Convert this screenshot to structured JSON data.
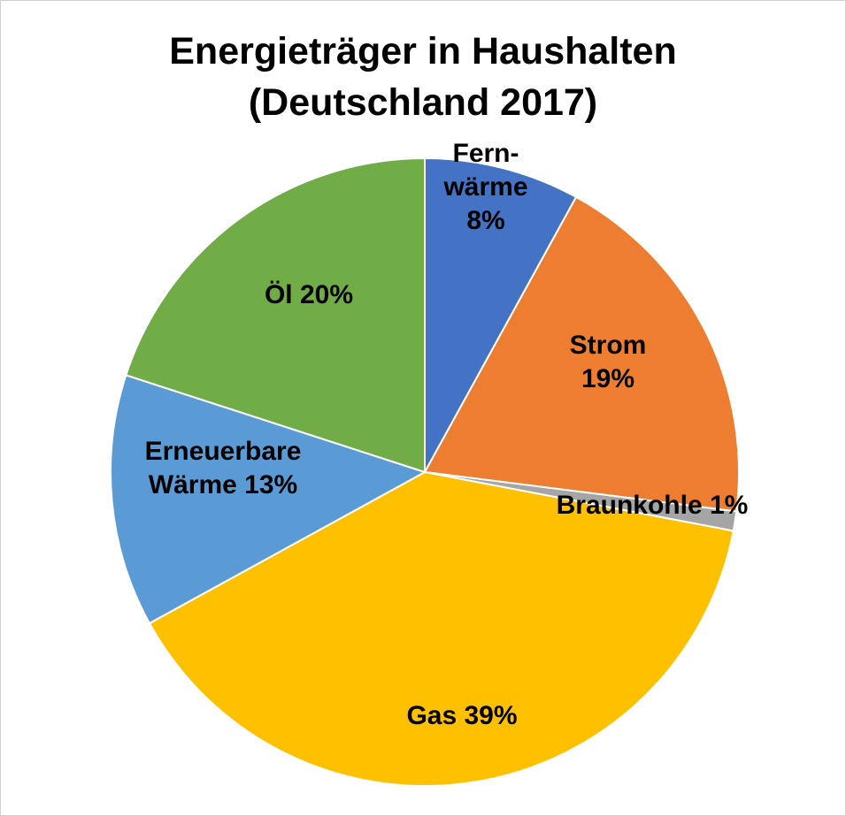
{
  "chart_data": {
    "type": "pie",
    "title": [
      "Energieträger in Haushalten",
      "(Deutschland 2017)"
    ],
    "slices": [
      {
        "name": "Fernwärme",
        "label_lines": [
          "Fern-",
          "wärme",
          "8%"
        ],
        "value": 8,
        "color": "#4472C4"
      },
      {
        "name": "Strom",
        "label_lines": [
          "Strom",
          "19%"
        ],
        "value": 19,
        "color": "#ED7D31"
      },
      {
        "name": "Braunkohle",
        "label_lines": [
          "Braunkohle 1%"
        ],
        "value": 1,
        "color": "#A5A5A5"
      },
      {
        "name": "Gas",
        "label_lines": [
          "Gas 39%"
        ],
        "value": 39,
        "color": "#FFC000"
      },
      {
        "name": "Erneuerbare Wärme",
        "label_lines": [
          "Erneuerbare",
          "Wärme 13%"
        ],
        "value": 13,
        "color": "#5B9BD5"
      },
      {
        "name": "Öl",
        "label_lines": [
          "Öl 20%"
        ],
        "value": 20,
        "color": "#70AD47"
      }
    ],
    "start": "12 o'clock",
    "direction": "clockwise",
    "legend": "none"
  }
}
